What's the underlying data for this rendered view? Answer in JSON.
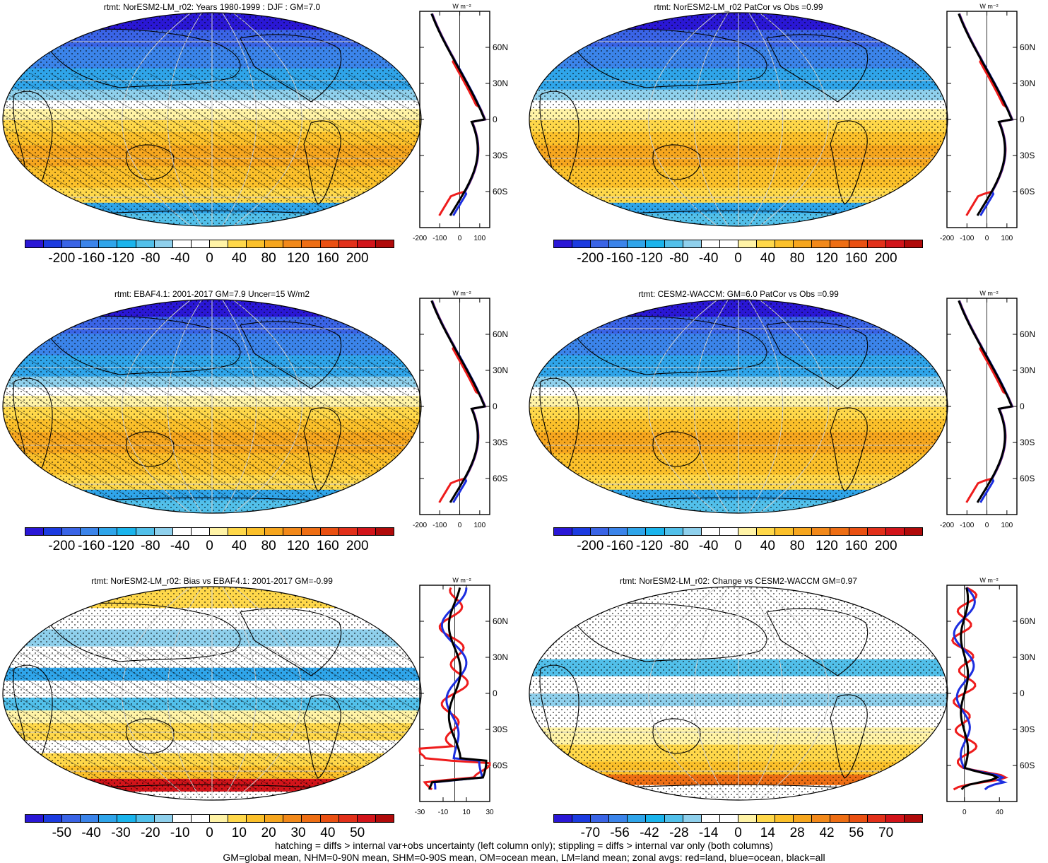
{
  "panels": [
    {
      "title": "rtmt: NorESM2-LM_r02: Years 1980-1999 : DJF : GM=7.0",
      "kind": "abs",
      "hatch": true,
      "x_ticks": [
        "-200",
        "-100",
        "0",
        "100"
      ],
      "x_range": [
        -200,
        150
      ]
    },
    {
      "title": "rtmt: NorESM2-LM_r02 PatCor vs Obs =0.99",
      "kind": "abs",
      "hatch": false,
      "x_ticks": [
        "-200",
        "-100",
        "0",
        "100"
      ],
      "x_range": [
        -200,
        150
      ]
    },
    {
      "title": "rtmt: EBAF4.1: 2001-2017 GM=7.9 Uncer=15 W/m2",
      "kind": "abs",
      "hatch": true,
      "x_ticks": [
        "-200",
        "-100",
        "0",
        "100"
      ],
      "x_range": [
        -200,
        150
      ]
    },
    {
      "title": "rtmt: CESM2-WACCM: GM=6.0 PatCor vs Obs =0.99",
      "kind": "abs",
      "hatch": false,
      "x_ticks": [
        "-200",
        "-100",
        "0",
        "100"
      ],
      "x_range": [
        -200,
        150
      ]
    },
    {
      "title": "rtmt: NorESM2-LM_r02: Bias vs EBAF4.1: 2001-2017 GM=-0.99",
      "kind": "bias",
      "hatch": true,
      "x_ticks": [
        "-30",
        "-10",
        "10",
        "30"
      ],
      "x_range": [
        -30,
        30
      ]
    },
    {
      "title": "rtmt: NorESM2-LM_r02: Change vs CESM2-WACCM GM=0.97",
      "kind": "change",
      "hatch": false,
      "x_ticks": [
        "0",
        "40"
      ],
      "x_range": [
        -20,
        60
      ]
    }
  ],
  "colorbars": {
    "abs": [
      "-200",
      "-160",
      "-120",
      "-80",
      "-40",
      "0",
      "40",
      "80",
      "120",
      "160",
      "200"
    ],
    "bias": [
      "-50",
      "-40",
      "-30",
      "-20",
      "-10",
      "0",
      "10",
      "20",
      "30",
      "40",
      "50"
    ],
    "change": [
      "-70",
      "-56",
      "-42",
      "-28",
      "-14",
      "0",
      "14",
      "28",
      "42",
      "56",
      "70"
    ]
  },
  "colors": [
    "#2a17d6",
    "#1c3be0",
    "#3a64e6",
    "#3b84ea",
    "#2fa5ea",
    "#1ab4ec",
    "#52c0ea",
    "#8fd0ec",
    "#ffffff",
    "#ffffff",
    "#fff3a6",
    "#ffd84a",
    "#fbc02a",
    "#f6a61e",
    "#f2891a",
    "#ee6e14",
    "#ea5012",
    "#e2301a",
    "#d2141a",
    "#b00a0a"
  ],
  "lat_labels": [
    "60N",
    "30N",
    "0",
    "30S",
    "60S"
  ],
  "unit_label": "W m⁻²",
  "footer": {
    "line1": "hatching = diffs > internal var+obs uncertainty (left column only); stippling = diffs > internal var only (both columns)",
    "line2": "GM=global mean, NHM=0-90N mean, SHM=0-90S mean, OM=ocean mean, LM=land mean; zonal avgs: red=land, blue=ocean, black=all"
  }
}
